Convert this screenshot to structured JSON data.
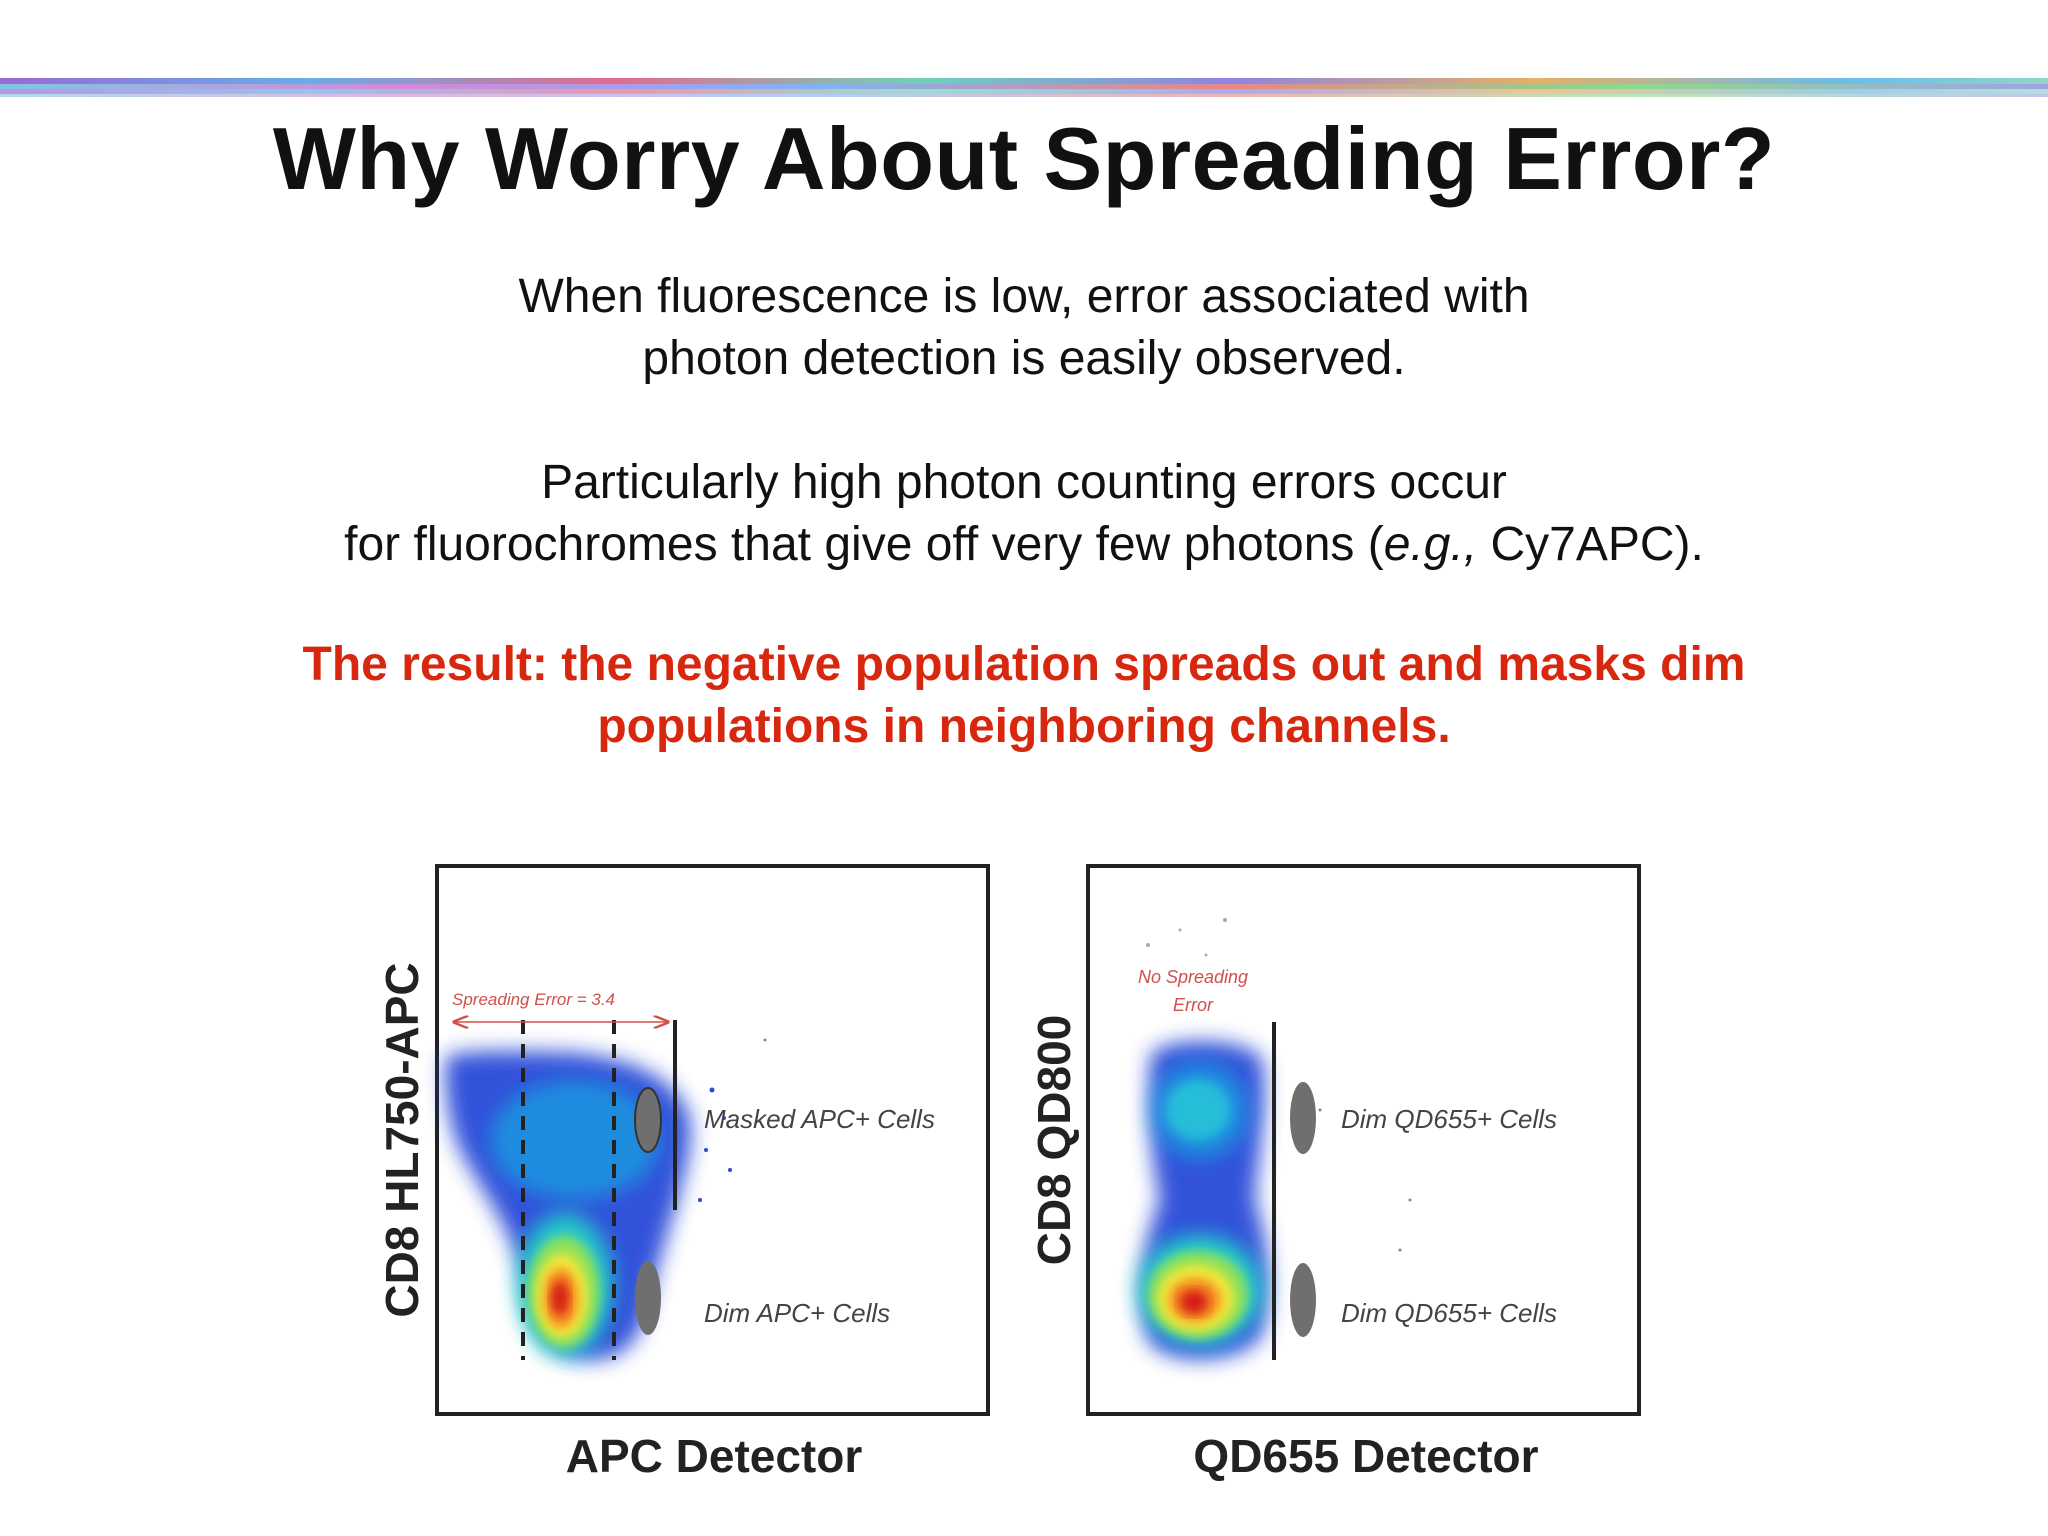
{
  "title": "Why Worry About Spreading Error?",
  "paragraph1": {
    "line1": "When fluorescence is low, error associated with",
    "line2": "photon detection is easily observed."
  },
  "paragraph2": {
    "line1": "Particularly high photon counting errors occur",
    "line2_before": "for fluorochromes that give off very few photons (",
    "line2_italic": "e.g.,",
    "line2_after": " Cy7APC)."
  },
  "result": {
    "line1": "The result: the negative population spreads out and masks dim",
    "line2": "populations in neighboring channels."
  },
  "colors": {
    "result_text": "#d8270f",
    "annotation": "#d0504a",
    "gate": "#6b6b6b"
  },
  "plots": [
    {
      "y_label": "CD8 HL750-APC",
      "x_label": "APC Detector",
      "annotation": "Spreading Error = 3.4",
      "gate_labels": [
        "Masked APC+ Cells",
        "Dim APC+ Cells"
      ]
    },
    {
      "y_label": "CD8 QD800",
      "x_label": "QD655 Detector",
      "annotation_line1": "No Spreading",
      "annotation_line2": "Error",
      "gate_labels": [
        "Dim QD655+ Cells",
        "Dim QD655+ Cells"
      ]
    }
  ]
}
